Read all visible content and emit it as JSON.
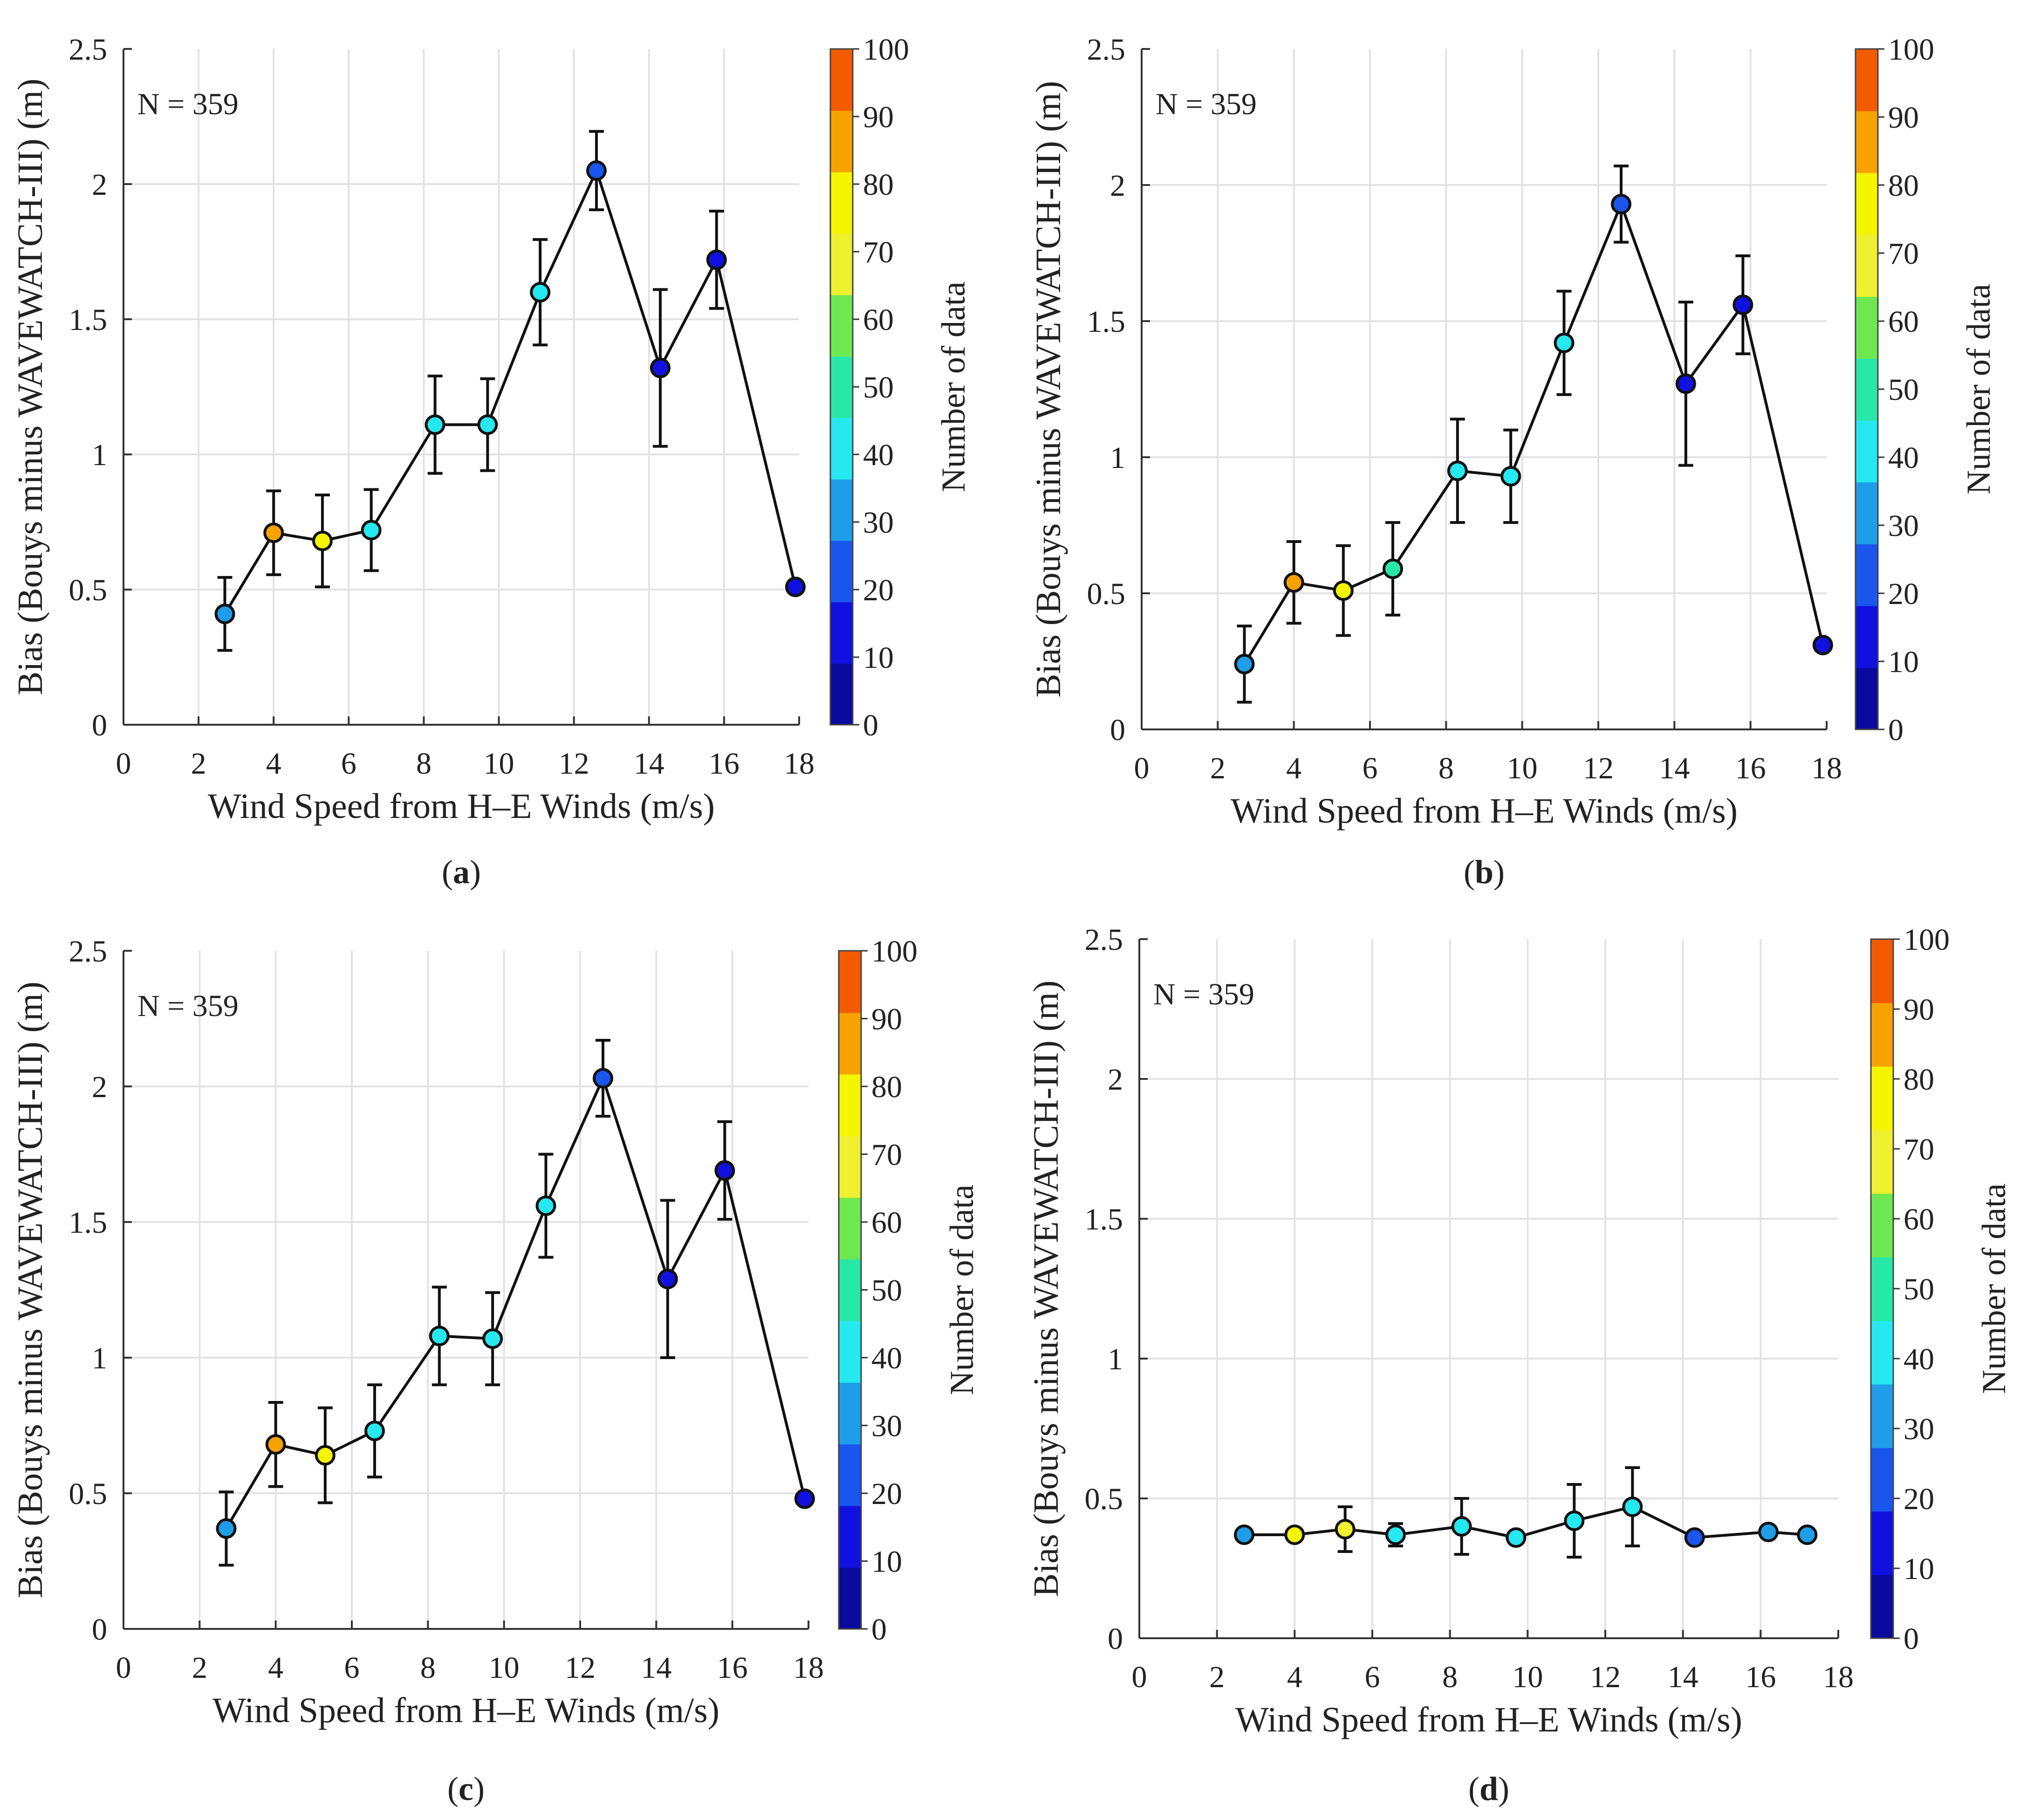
{
  "colorbar": {
    "label": "Number of data",
    "ticks": [
      "0",
      "10",
      "20",
      "30",
      "40",
      "50",
      "60",
      "70",
      "80",
      "90",
      "100"
    ],
    "range": [
      0,
      100
    ],
    "colors": [
      "#0a0a9e",
      "#1010e0",
      "#1a55ee",
      "#1e9ee8",
      "#25e8f0",
      "#28e8a8",
      "#6ee850",
      "#eef030",
      "#f5f500",
      "#f8a200",
      "#f45a00"
    ]
  },
  "chart_data": [
    {
      "type": "line",
      "panel_label": "a",
      "annotation": "N = 359",
      "xlabel": "Wind Speed from H–E Winds (m/s)",
      "ylabel": "Bias (Bouys minus WAVEWATCH-III) (m)",
      "xlim": [
        0,
        18
      ],
      "ylim": [
        0,
        2.5
      ],
      "xticks": [
        "0",
        "2",
        "4",
        "6",
        "8",
        "10",
        "12",
        "14",
        "16",
        "18"
      ],
      "yticks": [
        "0",
        "0.5",
        "1",
        "1.5",
        "2",
        "2.5"
      ],
      "x": [
        2.7,
        4.0,
        5.3,
        6.6,
        8.3,
        9.7,
        11.1,
        12.6,
        14.3,
        15.8,
        17.9
      ],
      "y": [
        0.41,
        0.71,
        0.68,
        0.72,
        1.11,
        1.11,
        1.6,
        2.05,
        1.32,
        1.72,
        0.51
      ],
      "err": [
        0.135,
        0.155,
        0.17,
        0.15,
        0.18,
        0.17,
        0.195,
        0.145,
        0.29,
        0.18,
        null
      ],
      "count": [
        38,
        95,
        85,
        48,
        48,
        45,
        45,
        25,
        18,
        18,
        12
      ]
    },
    {
      "type": "line",
      "panel_label": "b",
      "annotation": "N = 359",
      "xlabel": "Wind Speed from H–E Winds (m/s)",
      "ylabel": "Bias (Bouys minus WAVEWATCH-III) (m)",
      "xlim": [
        0,
        18
      ],
      "ylim": [
        0,
        2.5
      ],
      "xticks": [
        "0",
        "2",
        "4",
        "6",
        "8",
        "10",
        "12",
        "14",
        "16",
        "18"
      ],
      "yticks": [
        "0",
        "0.5",
        "1",
        "1.5",
        "2",
        "2.5"
      ],
      "x": [
        2.7,
        4.0,
        5.3,
        6.6,
        8.3,
        9.7,
        11.1,
        12.6,
        14.3,
        15.8,
        17.9
      ],
      "y": [
        0.24,
        0.54,
        0.51,
        0.59,
        0.95,
        0.93,
        1.42,
        1.93,
        1.27,
        1.56,
        0.31
      ],
      "err": [
        0.14,
        0.15,
        0.165,
        0.17,
        0.19,
        0.17,
        0.19,
        0.14,
        0.3,
        0.18,
        null
      ],
      "count": [
        38,
        95,
        85,
        55,
        48,
        45,
        40,
        25,
        18,
        18,
        12
      ]
    },
    {
      "type": "line",
      "panel_label": "c",
      "annotation": "N = 359",
      "xlabel": "Wind Speed from H–E Winds (m/s)",
      "ylabel": "Bias (Bouys minus WAVEWATCH-III) (m)",
      "xlim": [
        0,
        18
      ],
      "ylim": [
        0,
        2.5
      ],
      "xticks": [
        "0",
        "2",
        "4",
        "6",
        "8",
        "10",
        "12",
        "14",
        "16",
        "18"
      ],
      "yticks": [
        "0",
        "0.5",
        "1",
        "1.5",
        "2",
        "2.5"
      ],
      "x": [
        2.7,
        4.0,
        5.3,
        6.6,
        8.3,
        9.7,
        11.1,
        12.6,
        14.3,
        15.8,
        17.9
      ],
      "y": [
        0.37,
        0.68,
        0.64,
        0.73,
        1.08,
        1.07,
        1.56,
        2.03,
        1.29,
        1.69,
        0.48
      ],
      "err": [
        0.135,
        0.155,
        0.175,
        0.17,
        0.18,
        0.17,
        0.19,
        0.14,
        0.29,
        0.18,
        null
      ],
      "count": [
        38,
        95,
        85,
        48,
        48,
        45,
        40,
        25,
        18,
        18,
        12
      ]
    },
    {
      "type": "line",
      "panel_label": "d",
      "annotation": "N = 359",
      "xlabel": "Wind Speed from H–E Winds (m/s)",
      "ylabel": "Bias (Bouys minus WAVEWATCH-III) (m)",
      "xlim": [
        0,
        18
      ],
      "ylim": [
        0,
        2.5
      ],
      "xticks": [
        "0",
        "2",
        "4",
        "6",
        "8",
        "10",
        "12",
        "14",
        "16",
        "18"
      ],
      "yticks": [
        "0",
        "0.5",
        "1",
        "1.5",
        "2",
        "2.5"
      ],
      "x": [
        2.7,
        4.0,
        5.3,
        6.6,
        8.3,
        9.7,
        11.2,
        12.7,
        14.3,
        16.2,
        17.2
      ],
      "y": [
        0.37,
        0.37,
        0.39,
        0.37,
        0.4,
        0.36,
        0.42,
        0.47,
        0.36,
        0.38,
        0.37
      ],
      "err": [
        null,
        null,
        0.08,
        0.04,
        0.1,
        null,
        0.13,
        0.14,
        null,
        null,
        null
      ],
      "count": [
        38,
        85,
        75,
        45,
        48,
        45,
        45,
        45,
        25,
        35,
        30
      ]
    }
  ]
}
